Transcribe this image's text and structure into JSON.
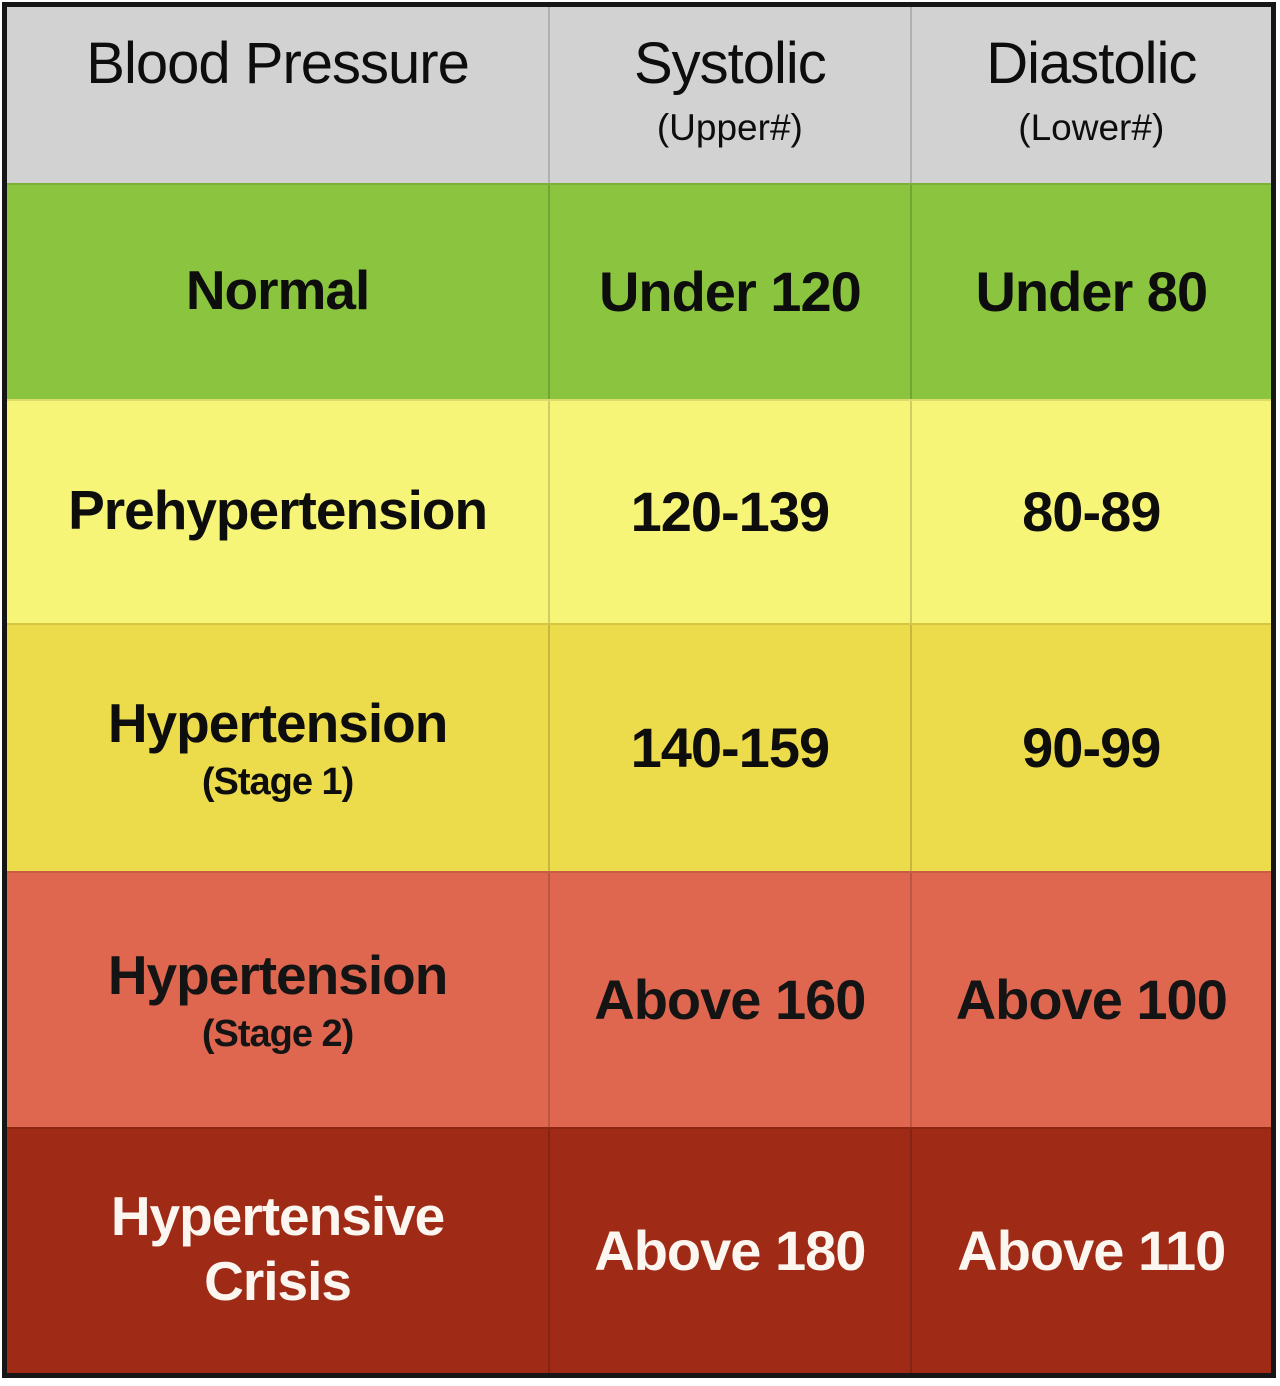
{
  "title": "Blood Pressure",
  "colors": {
    "header_bg": "#d2d2d2",
    "normal": "#8bc53f",
    "prehypertension": "#f7f578",
    "hypertension_stage1": "#ecdc4b",
    "hypertension_stage2": "#df6750",
    "hypertensive_crisis": "#9f2b17",
    "dark_text": "#0d0d0d",
    "light_text": "#fbf6f0",
    "border": "#161616"
  },
  "table": {
    "header": {
      "col1": {
        "title": "Blood Pressure",
        "subtitle": ""
      },
      "col2": {
        "title": "Systolic",
        "subtitle": "(Upper#)"
      },
      "col3": {
        "title": "Diastolic",
        "subtitle": "(Lower#)"
      }
    },
    "rows": [
      {
        "label": "Normal",
        "sublabel": "",
        "systolic": "Under 120",
        "diastolic": "Under 80",
        "bg": "#8bc53f",
        "fg": "#0d0d0d"
      },
      {
        "label": "Prehypertension",
        "sublabel": "",
        "systolic": "120-139",
        "diastolic": "80-89",
        "bg": "#f7f578",
        "fg": "#0d0d0d"
      },
      {
        "label": "Hypertension",
        "sublabel": "(Stage 1)",
        "systolic": "140-159",
        "diastolic": "90-99",
        "bg": "#ecdc4b",
        "fg": "#0d0d0d"
      },
      {
        "label": "Hypertension",
        "sublabel": "(Stage 2)",
        "systolic": "Above 160",
        "diastolic": "Above 100",
        "bg": "#df6750",
        "fg": "#141414"
      },
      {
        "label": "Hypertensive Crisis",
        "sublabel": "",
        "systolic": "Above 180",
        "diastolic": "Above 110",
        "bg": "#9f2b17",
        "fg": "#fbf6f0"
      }
    ]
  },
  "chart_data": {
    "type": "table",
    "title": "Blood Pressure",
    "columns": [
      "Blood Pressure",
      "Systolic (Upper#)",
      "Diastolic (Lower#)"
    ],
    "rows": [
      [
        "Normal",
        "Under 120",
        "Under 80"
      ],
      [
        "Prehypertension",
        "120-139",
        "80-89"
      ],
      [
        "Hypertension (Stage 1)",
        "140-159",
        "90-99"
      ],
      [
        "Hypertension (Stage 2)",
        "Above 160",
        "Above 100"
      ],
      [
        "Hypertensive Crisis",
        "Above 180",
        "Above 110"
      ]
    ],
    "row_colors": [
      "#8bc53f",
      "#f7f578",
      "#ecdc4b",
      "#df6750",
      "#9f2b17"
    ],
    "layout": "header row gray; category column left; values centered; last row uses white text on dark red"
  }
}
